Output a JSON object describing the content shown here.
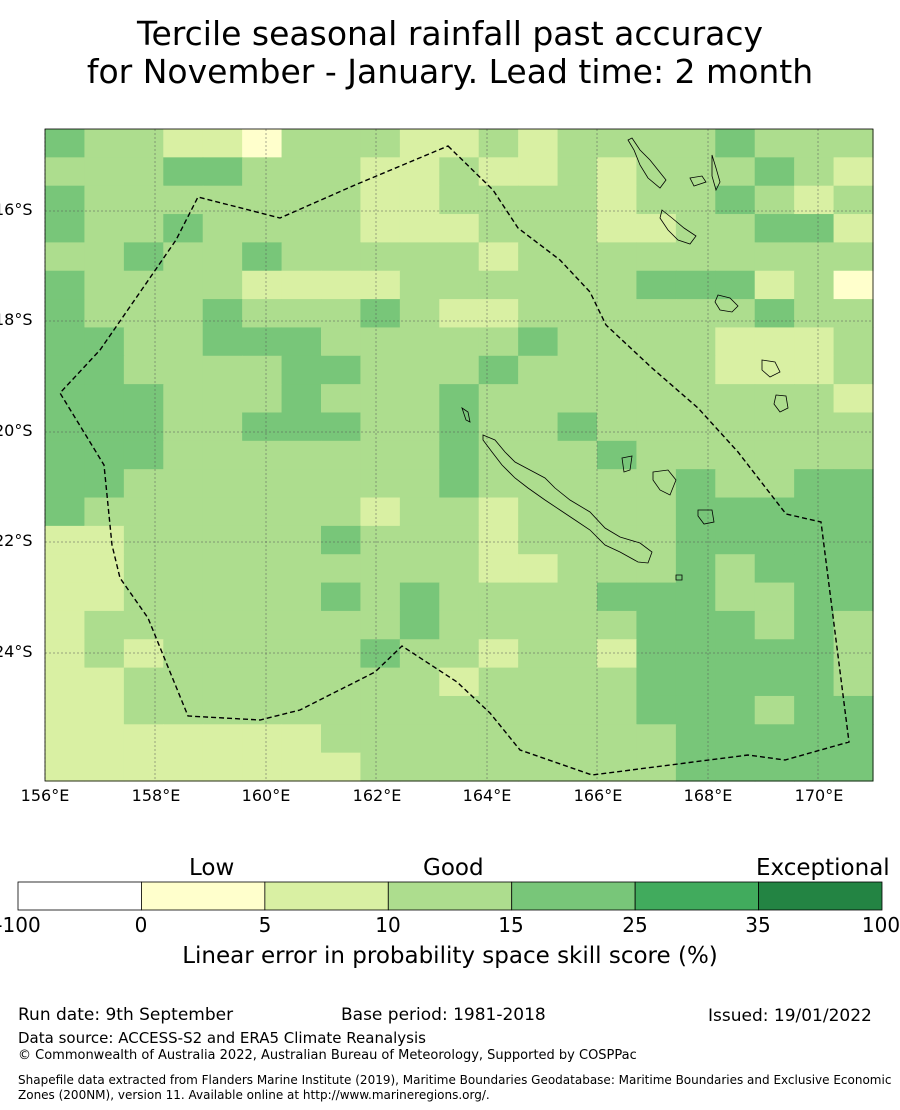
{
  "title_line1": "Tercile seasonal rainfall past accuracy",
  "title_line2": "for November - January. Lead time: 2 month",
  "map": {
    "lat_labels": [
      "16°S",
      "18°S",
      "20°S",
      "22°S",
      "24°S"
    ],
    "lon_labels": [
      "156°E",
      "158°E",
      "160°E",
      "162°E",
      "164°E",
      "166°E",
      "168°E",
      "170°E"
    ],
    "lon_range": [
      155.8,
      171.2
    ],
    "lat_range": [
      -26.5,
      -14.7
    ],
    "boundary_style": "dashed",
    "grid": true
  },
  "colorbar": {
    "categories": [
      "Low",
      "Good",
      "Exceptional"
    ],
    "bounds": [
      "-100",
      "0",
      "5",
      "10",
      "15",
      "25",
      "35",
      "100"
    ],
    "colors": [
      "#ffffff",
      "#ffffcc",
      "#d9f0a3",
      "#addd8e",
      "#78c679",
      "#41ab5d",
      "#238443"
    ],
    "label": "Linear error in probability space skill score (%)"
  },
  "footer": {
    "run_date": "Run date: 9th September",
    "base_period": "Base period: 1981-2018",
    "issued": "Issued: 19/01/2022",
    "data_source": "Data source: ACCESS-S2 and ERA5 Climate Reanalysis",
    "copyright": "© Commonwealth of Australia 2022, Australian Bureau of Meteorology, Supported by COSPPac",
    "shapefile": "Shapefile data extracted from Flanders Marine Institute (2019), Maritime Boundaries Geodatabase: Maritime Boundaries and Exclusive Economic Zones (200NM), version 11. Available online at http://www.marineregions.org/."
  }
}
